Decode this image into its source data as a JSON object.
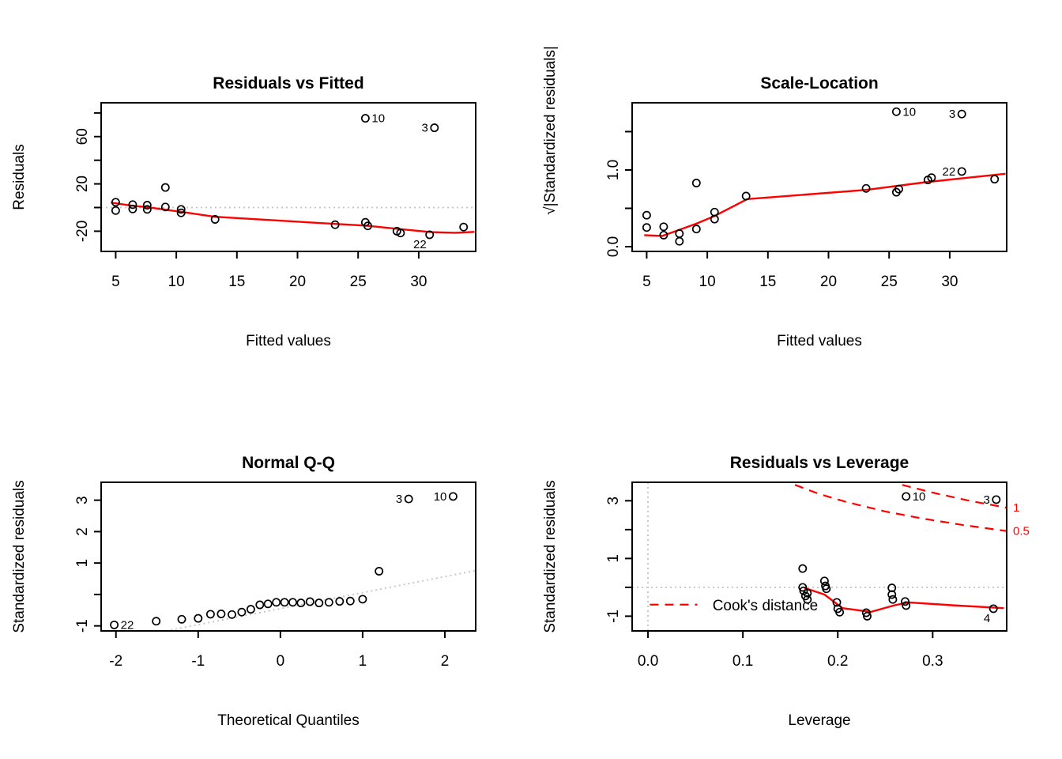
{
  "figure": {
    "background": "#ffffff"
  },
  "colors": {
    "smooth_line": "#ff0000",
    "cook_contour": "#ff0000",
    "reference_gray": "#c3c3c3",
    "point_stroke": "#000000",
    "text": "#000000"
  },
  "chart_data": [
    {
      "id": "residuals-vs-fitted",
      "type": "scatter",
      "title": "Residuals vs Fitted",
      "xlabel": "Fitted values",
      "ylabel": "Residuals",
      "xlim": [
        3.8,
        34.7
      ],
      "ylim": [
        -37.1,
        88.6
      ],
      "grid": false,
      "x_ticks": [
        {
          "v": 5,
          "t": "5"
        },
        {
          "v": 10,
          "t": "10"
        },
        {
          "v": 15,
          "t": "15"
        },
        {
          "v": 20,
          "t": "20"
        },
        {
          "v": 25,
          "t": "25"
        },
        {
          "v": 30,
          "t": "30"
        }
      ],
      "y_ticks": [
        {
          "v": -20,
          "t": "-20"
        },
        {
          "v": 0,
          "t": ""
        },
        {
          "v": 20,
          "t": "20"
        },
        {
          "v": 40,
          "t": ""
        },
        {
          "v": 60,
          "t": "60"
        },
        {
          "v": 80,
          "t": ""
        }
      ],
      "hlines": [
        {
          "y": 0
        }
      ],
      "vlines": [],
      "points": [
        [
          5.0,
          4.5
        ],
        [
          5.0,
          -2.5
        ],
        [
          6.4,
          2.5
        ],
        [
          6.4,
          -1.2
        ],
        [
          7.6,
          2.0
        ],
        [
          7.6,
          -1.5
        ],
        [
          9.1,
          17.0
        ],
        [
          9.1,
          0.5
        ],
        [
          10.4,
          -1.5
        ],
        [
          10.4,
          -4.5
        ],
        [
          13.2,
          -10.0
        ],
        [
          23.1,
          -14.5
        ],
        [
          25.6,
          -12.5
        ],
        [
          25.8,
          -15.5
        ],
        [
          28.2,
          -20.0
        ],
        [
          28.5,
          -21.5
        ],
        [
          30.9,
          -23.0
        ],
        [
          33.7,
          -16.5
        ],
        [
          25.6,
          75.5
        ],
        [
          31.3,
          67.5
        ]
      ],
      "labels": [
        {
          "t": "10",
          "x": 25.6,
          "y": 75.5,
          "side": "r"
        },
        {
          "t": "3",
          "x": 31.3,
          "y": 67.5,
          "side": "l"
        },
        {
          "t": "22",
          "x": 30.9,
          "y": -23.0,
          "side": "bl"
        }
      ],
      "smooth": [
        [
          4.6,
          4.2
        ],
        [
          6.4,
          1.5
        ],
        [
          7.6,
          0.3
        ],
        [
          9.1,
          -1.8
        ],
        [
          10.4,
          -3.6
        ],
        [
          13.2,
          -7.8
        ],
        [
          23.1,
          -13.8
        ],
        [
          25.7,
          -15.3
        ],
        [
          28.4,
          -18.2
        ],
        [
          31.0,
          -20.8
        ],
        [
          33.0,
          -21.3
        ],
        [
          34.6,
          -20.6
        ]
      ]
    },
    {
      "id": "scale-location",
      "type": "scatter",
      "title": "Scale-Location",
      "xlabel": "Fitted values",
      "ylabel": "√|Standardized residuals|",
      "xlim": [
        3.8,
        34.7
      ],
      "ylim": [
        -0.062,
        1.876
      ],
      "grid": false,
      "x_ticks": [
        {
          "v": 5,
          "t": "5"
        },
        {
          "v": 10,
          "t": "10"
        },
        {
          "v": 15,
          "t": "15"
        },
        {
          "v": 20,
          "t": "20"
        },
        {
          "v": 25,
          "t": "25"
        },
        {
          "v": 30,
          "t": "30"
        }
      ],
      "y_ticks": [
        {
          "v": 0.0,
          "t": "0.0"
        },
        {
          "v": 0.5,
          "t": ""
        },
        {
          "v": 1.0,
          "t": "1.0"
        },
        {
          "v": 1.5,
          "t": ""
        }
      ],
      "hlines": [],
      "vlines": [],
      "points": [
        [
          5.0,
          0.41
        ],
        [
          5.0,
          0.25
        ],
        [
          6.4,
          0.26
        ],
        [
          6.4,
          0.15
        ],
        [
          7.7,
          0.17
        ],
        [
          7.7,
          0.07
        ],
        [
          9.1,
          0.83
        ],
        [
          9.1,
          0.23
        ],
        [
          10.6,
          0.45
        ],
        [
          10.6,
          0.36
        ],
        [
          13.2,
          0.66
        ],
        [
          23.1,
          0.76
        ],
        [
          25.6,
          0.71
        ],
        [
          25.8,
          0.75
        ],
        [
          28.2,
          0.87
        ],
        [
          28.5,
          0.9
        ],
        [
          31.0,
          0.98
        ],
        [
          33.7,
          0.88
        ],
        [
          25.6,
          1.76
        ],
        [
          31.0,
          1.73
        ]
      ],
      "labels": [
        {
          "t": "10",
          "x": 25.6,
          "y": 1.76,
          "side": "r"
        },
        {
          "t": "3",
          "x": 31.0,
          "y": 1.73,
          "side": "l"
        },
        {
          "t": "22",
          "x": 31.0,
          "y": 0.98,
          "side": "l"
        }
      ],
      "smooth": [
        [
          4.8,
          0.15
        ],
        [
          6.3,
          0.14
        ],
        [
          7.7,
          0.22
        ],
        [
          9.1,
          0.3
        ],
        [
          10.6,
          0.4
        ],
        [
          13.3,
          0.62
        ],
        [
          23.1,
          0.74
        ],
        [
          28.0,
          0.84
        ],
        [
          31.0,
          0.89
        ],
        [
          34.6,
          0.95
        ]
      ]
    },
    {
      "id": "normal-qq",
      "type": "scatter",
      "title": "Normal Q-Q",
      "xlabel": "Theoretical Quantiles",
      "ylabel": "Standardized residuals",
      "xlim": [
        -2.18,
        2.375
      ],
      "ylim": [
        -1.16,
        3.57
      ],
      "grid": false,
      "x_ticks": [
        {
          "v": -2,
          "t": "-2"
        },
        {
          "v": -1,
          "t": "-1"
        },
        {
          "v": 0,
          "t": "0"
        },
        {
          "v": 1,
          "t": "1"
        },
        {
          "v": 2,
          "t": "2"
        }
      ],
      "y_ticks": [
        {
          "v": -1,
          "t": "-1"
        },
        {
          "v": 0,
          "t": ""
        },
        {
          "v": 1,
          "t": "1"
        },
        {
          "v": 2,
          "t": "2"
        },
        {
          "v": 3,
          "t": "3"
        }
      ],
      "hlines": [],
      "vlines": [],
      "reflines": [
        {
          "pts": [
            [
              -1.39,
              -1.16
            ],
            [
              2.375,
              0.76
            ]
          ]
        }
      ],
      "points": [
        [
          -2.02,
          -0.97
        ],
        [
          -1.51,
          -0.85
        ],
        [
          -1.2,
          -0.79
        ],
        [
          -1.0,
          -0.76
        ],
        [
          -0.85,
          -0.63
        ],
        [
          -0.72,
          -0.62
        ],
        [
          -0.59,
          -0.64
        ],
        [
          -0.47,
          -0.56
        ],
        [
          -0.36,
          -0.47
        ],
        [
          -0.25,
          -0.33
        ],
        [
          -0.15,
          -0.3
        ],
        [
          -0.05,
          -0.25
        ],
        [
          0.05,
          -0.25
        ],
        [
          0.15,
          -0.25
        ],
        [
          0.25,
          -0.27
        ],
        [
          0.36,
          -0.23
        ],
        [
          0.47,
          -0.27
        ],
        [
          0.59,
          -0.25
        ],
        [
          0.72,
          -0.22
        ],
        [
          0.85,
          -0.21
        ],
        [
          1.0,
          -0.15
        ],
        [
          1.2,
          0.74
        ],
        [
          1.56,
          3.04
        ],
        [
          2.1,
          3.12
        ]
      ],
      "labels": [
        {
          "t": "22",
          "x": -2.02,
          "y": -0.97,
          "side": "r"
        },
        {
          "t": "3",
          "x": 1.56,
          "y": 3.04,
          "side": "l"
        },
        {
          "t": "10",
          "x": 2.1,
          "y": 3.12,
          "side": "l"
        }
      ]
    },
    {
      "id": "residuals-vs-leverage",
      "type": "scatter",
      "title": "Residuals vs Leverage",
      "xlabel": "Leverage",
      "ylabel": "Standardized residuals",
      "xlim": [
        -0.0167,
        0.378
      ],
      "ylim": [
        -1.51,
        3.64
      ],
      "grid": false,
      "x_ticks": [
        {
          "v": 0.0,
          "t": "0.0"
        },
        {
          "v": 0.1,
          "t": "0.1"
        },
        {
          "v": 0.2,
          "t": "0.2"
        },
        {
          "v": 0.3,
          "t": "0.3"
        }
      ],
      "y_ticks": [
        {
          "v": -1,
          "t": "-1"
        },
        {
          "v": 0,
          "t": ""
        },
        {
          "v": 1,
          "t": "1"
        },
        {
          "v": 2,
          "t": ""
        },
        {
          "v": 3,
          "t": "3"
        }
      ],
      "hlines": [
        {
          "y": 0
        }
      ],
      "vlines": [
        {
          "x": 0
        }
      ],
      "points": [
        [
          0.163,
          0.65
        ],
        [
          0.163,
          0.0
        ],
        [
          0.164,
          -0.12
        ],
        [
          0.166,
          -0.3
        ],
        [
          0.168,
          -0.2
        ],
        [
          0.168,
          -0.42
        ],
        [
          0.186,
          0.22
        ],
        [
          0.187,
          0.05
        ],
        [
          0.188,
          -0.05
        ],
        [
          0.199,
          -0.52
        ],
        [
          0.2,
          -0.74
        ],
        [
          0.202,
          -0.86
        ],
        [
          0.23,
          -0.88
        ],
        [
          0.231,
          -1.0
        ],
        [
          0.257,
          -0.02
        ],
        [
          0.257,
          -0.25
        ],
        [
          0.258,
          -0.42
        ],
        [
          0.271,
          -0.49
        ],
        [
          0.272,
          -0.63
        ],
        [
          0.272,
          3.15
        ],
        [
          0.367,
          3.04
        ],
        [
          0.364,
          -0.74
        ]
      ],
      "labels": [
        {
          "t": "10",
          "x": 0.272,
          "y": 3.15,
          "side": "r"
        },
        {
          "t": "3",
          "x": 0.367,
          "y": 3.04,
          "side": "l"
        },
        {
          "t": "4",
          "x": 0.364,
          "y": -0.74,
          "side": "bl"
        }
      ],
      "smooth": [
        [
          0.165,
          -0.02
        ],
        [
          0.186,
          -0.25
        ],
        [
          0.205,
          -0.72
        ],
        [
          0.235,
          -0.85
        ],
        [
          0.26,
          -0.62
        ],
        [
          0.275,
          -0.52
        ],
        [
          0.32,
          -0.62
        ],
        [
          0.375,
          -0.72
        ]
      ],
      "contours": [
        {
          "label": "0.5",
          "pts": [
            [
              0.155,
              3.55
            ],
            [
              0.18,
              3.24
            ],
            [
              0.21,
              2.95
            ],
            [
              0.25,
              2.63
            ],
            [
              0.29,
              2.38
            ],
            [
              0.33,
              2.17
            ],
            [
              0.378,
              1.95
            ]
          ]
        },
        {
          "label": "1",
          "pts": [
            [
              0.268,
              3.55
            ],
            [
              0.3,
              3.28
            ],
            [
              0.34,
              2.99
            ],
            [
              0.378,
              2.76
            ]
          ]
        }
      ],
      "contour_labels": [
        {
          "t": "1",
          "y": 2.77
        },
        {
          "t": "0.5",
          "y": 1.95
        }
      ],
      "legend": {
        "text": "Cook's distance",
        "line_x": [
          0.002,
          0.052
        ],
        "line_y": -0.6,
        "text_x": 0.068
      }
    }
  ]
}
